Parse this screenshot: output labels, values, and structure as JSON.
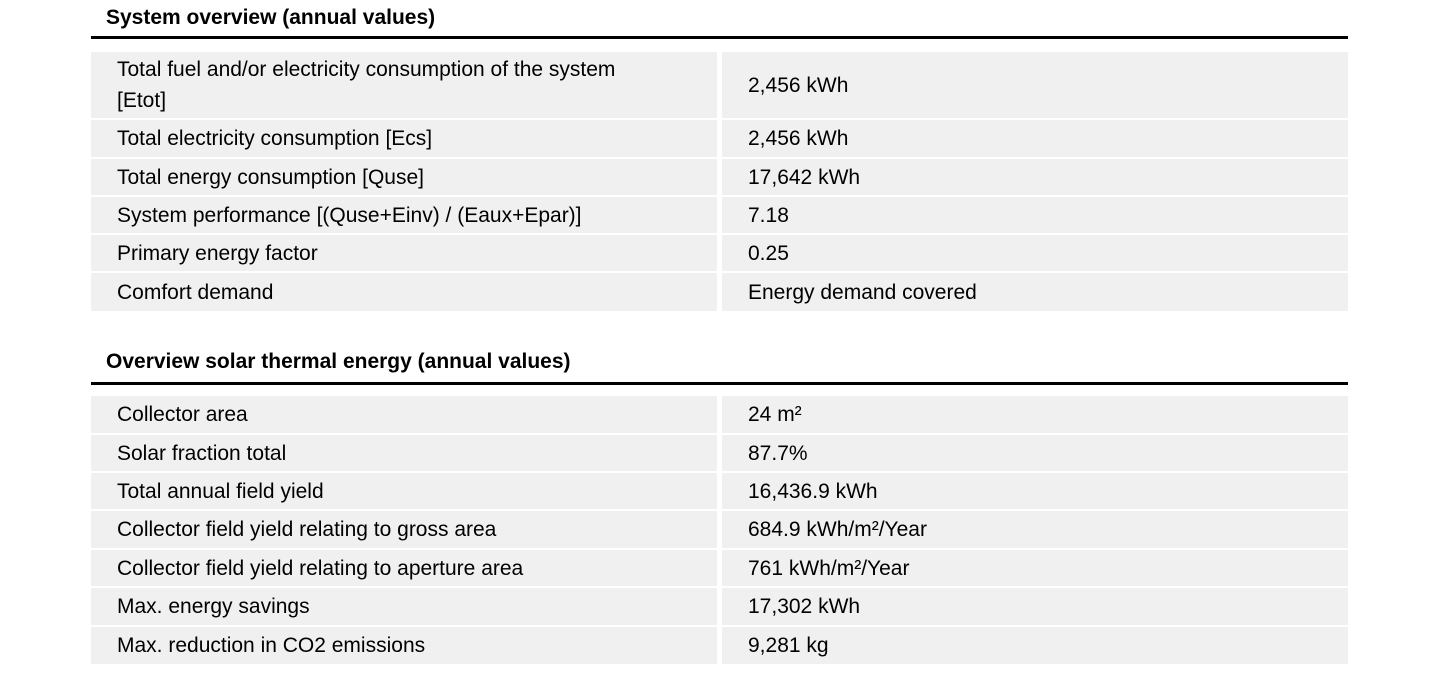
{
  "style": {
    "page_background": "#ffffff",
    "row_background": "#f0f0f0",
    "text_color": "#000000",
    "rule_color": "#000000"
  },
  "sections": [
    {
      "title": "System overview (annual values)",
      "rows": [
        {
          "label": "Total fuel and/or electricity consumption of the system [Etot]",
          "value": "2,456 kWh"
        },
        {
          "label": "Total electricity consumption [Ecs]",
          "value": "2,456 kWh"
        },
        {
          "label": "Total energy consumption [Quse]",
          "value": "17,642 kWh"
        },
        {
          "label": "System performance [(Quse+Einv) / (Eaux+Epar)]",
          "value": "7.18"
        },
        {
          "label": "Primary energy factor",
          "value": "0.25"
        },
        {
          "label": "Comfort demand",
          "value": "Energy demand covered"
        }
      ]
    },
    {
      "title": "Overview solar thermal energy (annual values)",
      "rows": [
        {
          "label": "Collector area",
          "value": "24 m²"
        },
        {
          "label": "Solar fraction total",
          "value": "87.7%"
        },
        {
          "label": "Total annual field yield",
          "value": "16,436.9 kWh"
        },
        {
          "label": "Collector field yield relating to gross area",
          "value": "684.9 kWh/m²/Year"
        },
        {
          "label": "Collector field yield relating to aperture area",
          "value": "761 kWh/m²/Year"
        },
        {
          "label": "Max. energy savings",
          "value": "17,302 kWh"
        },
        {
          "label": "Max. reduction in CO2 emissions",
          "value": "9,281 kg"
        }
      ]
    }
  ]
}
